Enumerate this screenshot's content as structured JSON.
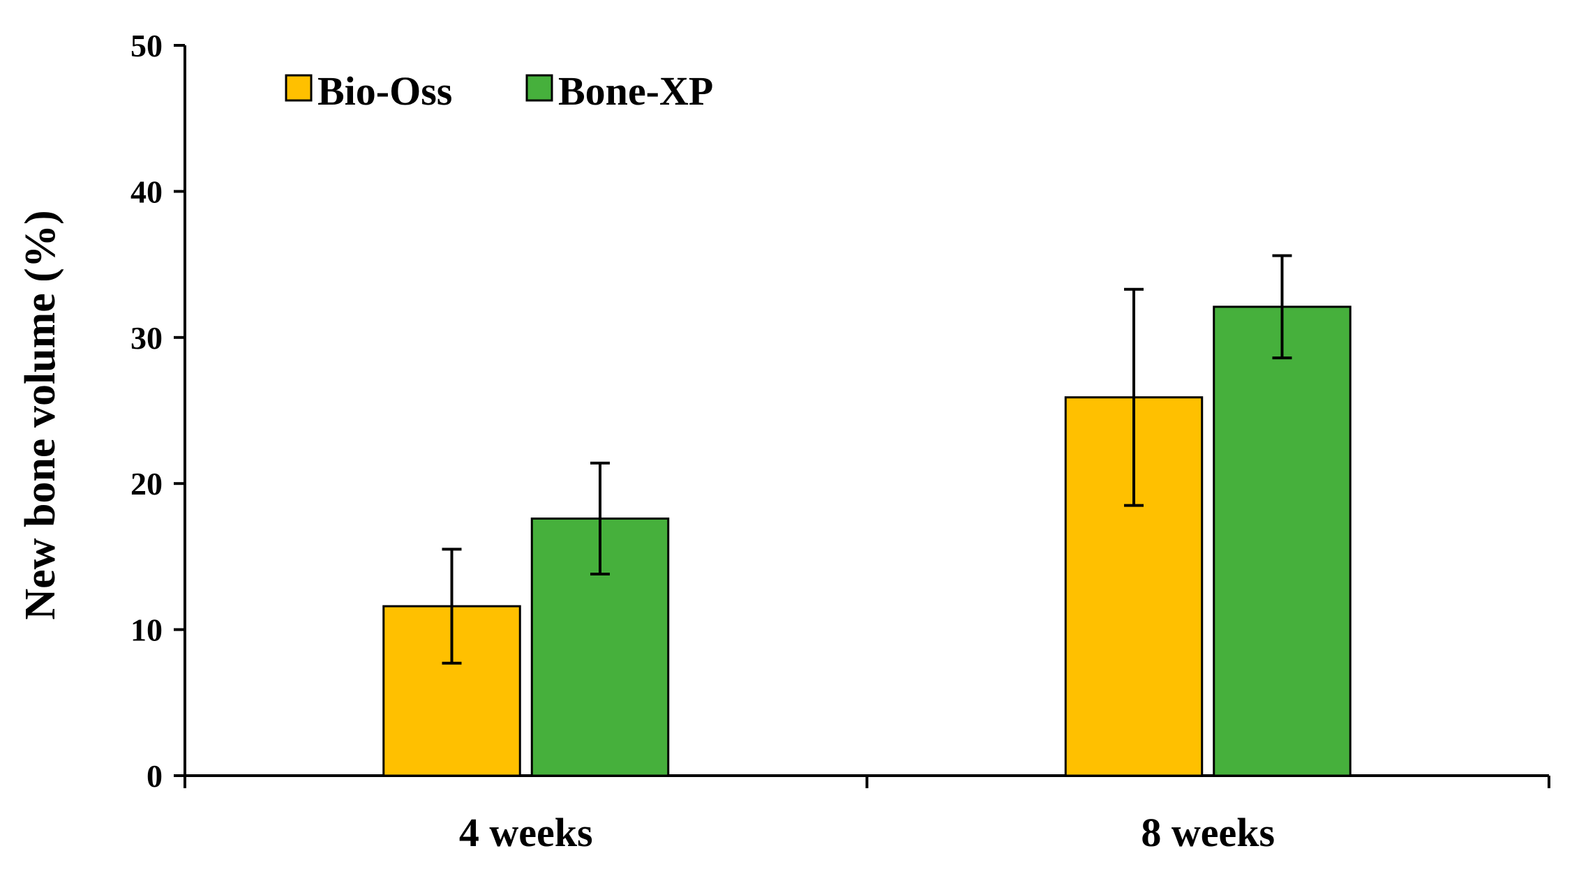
{
  "chart_data": {
    "type": "bar",
    "title": "",
    "xlabel": "",
    "ylabel": "New bone volume (%)",
    "ylim": [
      0,
      50
    ],
    "yticks": [
      0,
      10,
      20,
      30,
      40,
      50
    ],
    "ytick_labels": [
      "0",
      "10",
      "20",
      "30",
      "40",
      "50"
    ],
    "categories": [
      "4 weeks",
      "8 weeks"
    ],
    "legend_position": "top-left",
    "series": [
      {
        "name": "Bio-Oss",
        "color": "#FFC000",
        "values": [
          11.6,
          25.9
        ],
        "error": [
          3.9,
          7.4
        ]
      },
      {
        "name": "Bone-XP",
        "color": "#46B03C",
        "values": [
          17.6,
          32.1
        ],
        "error": [
          3.8,
          3.5
        ]
      }
    ],
    "grid": false
  }
}
